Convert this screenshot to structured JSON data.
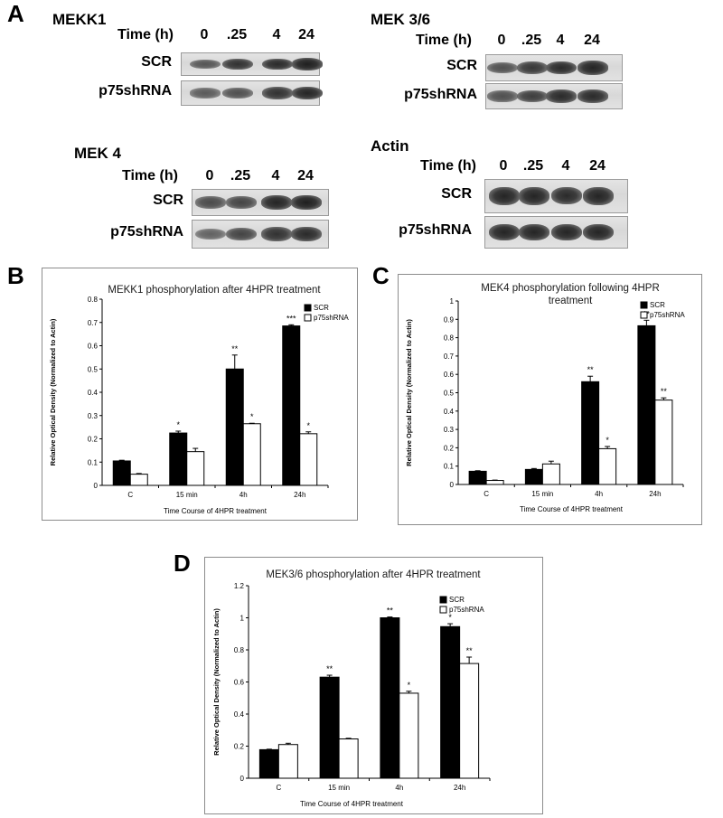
{
  "panels": {
    "a": "A",
    "b": "B",
    "c": "C",
    "d": "D"
  },
  "blots": [
    {
      "title": "MEKK1",
      "time_label": "Time (h)",
      "times": [
        "0",
        ".25",
        "4",
        "24"
      ],
      "rows": [
        "SCR",
        "p75shRNA"
      ],
      "intensity": [
        [
          0.55,
          0.85,
          0.9,
          1.0
        ],
        [
          0.5,
          0.6,
          0.85,
          0.95
        ]
      ]
    },
    {
      "title": "MEK 3/6",
      "time_label": "Time (h)",
      "times": [
        "0",
        ".25",
        "4",
        "24"
      ],
      "rows": [
        "SCR",
        "p75shRNA"
      ],
      "intensity": [
        [
          0.6,
          0.8,
          0.9,
          0.95
        ],
        [
          0.6,
          0.75,
          0.9,
          0.9
        ]
      ]
    },
    {
      "title": "MEK 4",
      "time_label": "Time (h)",
      "times": [
        "0",
        ".25",
        "4",
        "24"
      ],
      "rows": [
        "SCR",
        "p75shRNA"
      ],
      "intensity": [
        [
          0.65,
          0.7,
          0.95,
          1.0
        ],
        [
          0.45,
          0.7,
          0.85,
          0.9
        ]
      ]
    },
    {
      "title": "Actin",
      "time_label": "Time (h)",
      "times": [
        "0",
        ".25",
        "4",
        "24"
      ],
      "rows": [
        "SCR",
        "p75shRNA"
      ],
      "intensity": [
        [
          0.95,
          0.95,
          0.9,
          0.95
        ],
        [
          0.95,
          0.95,
          0.95,
          0.95
        ]
      ]
    }
  ],
  "chart_data": [
    {
      "type": "bar",
      "panel": "B",
      "title": "MEKK1 phosphorylation after 4HPR treatment",
      "xlabel": "Time Course of 4HPR treatment",
      "ylabel": "Relative Optical Density (Normalized to Actin)",
      "categories": [
        "C",
        "15 min",
        "4h",
        "24h"
      ],
      "ylim": [
        0,
        0.8
      ],
      "yticks": [
        "0",
        "0.1",
        "0.2",
        "0.3",
        "0.4",
        "0.5",
        "0.6",
        "0.7",
        "0.8"
      ],
      "series": [
        {
          "name": "SCR",
          "color": "#000000",
          "values": [
            0.105,
            0.225,
            0.5,
            0.685
          ],
          "errors": [
            0.003,
            0.008,
            0.06,
            0.005
          ],
          "sig": [
            "",
            "*",
            "**",
            "***"
          ]
        },
        {
          "name": "p75shRNA",
          "color": "#ffffff",
          "values": [
            0.048,
            0.145,
            0.265,
            0.222
          ],
          "errors": [
            0.003,
            0.014,
            0.002,
            0.008
          ],
          "sig": [
            "",
            "",
            "*",
            "*"
          ]
        }
      ],
      "legend": "top-right"
    },
    {
      "type": "bar",
      "panel": "C",
      "title": "MEK4 phosphorylation following 4HPR treatment",
      "xlabel": "Time Course of 4HPR treatment",
      "ylabel": "Relative Optical Density (Normalized to Actin)",
      "categories": [
        "C",
        "15 min",
        "4h",
        "24h"
      ],
      "ylim": [
        0,
        1
      ],
      "yticks": [
        "0",
        "0.1",
        "0.2",
        "0.3",
        "0.4",
        "0.5",
        "0.6",
        "0.7",
        "0.8",
        "0.9",
        "1"
      ],
      "series": [
        {
          "name": "SCR",
          "color": "#000000",
          "values": [
            0.072,
            0.082,
            0.56,
            0.865
          ],
          "errors": [
            0.003,
            0.005,
            0.03,
            0.03
          ],
          "sig": [
            "",
            "",
            "**",
            "**"
          ]
        },
        {
          "name": "p75shRNA",
          "color": "#ffffff",
          "values": [
            0.022,
            0.112,
            0.195,
            0.46
          ],
          "errors": [
            0.002,
            0.015,
            0.012,
            0.012
          ],
          "sig": [
            "",
            "",
            "*",
            "**"
          ]
        }
      ],
      "legend": "top-right"
    },
    {
      "type": "bar",
      "panel": "D",
      "title": "MEK3/6 phosphorylation after 4HPR treatment",
      "xlabel": "Time Course of 4HPR treatment",
      "ylabel": "Relative Optical Density (Normalized to Actin)",
      "categories": [
        "C",
        "15 min",
        "4h",
        "24h"
      ],
      "ylim": [
        0,
        1.2
      ],
      "yticks": [
        "0",
        "0.2",
        "0.4",
        "0.6",
        "0.8",
        "1",
        "1.2"
      ],
      "series": [
        {
          "name": "SCR",
          "color": "#000000",
          "values": [
            0.178,
            0.63,
            1.0,
            0.945
          ],
          "errors": [
            0.003,
            0.012,
            0.005,
            0.018
          ],
          "sig": [
            "",
            "**",
            "**",
            "*"
          ]
        },
        {
          "name": "p75shRNA",
          "color": "#ffffff",
          "values": [
            0.21,
            0.245,
            0.53,
            0.715
          ],
          "errors": [
            0.008,
            0.004,
            0.012,
            0.04
          ],
          "sig": [
            "",
            "",
            "*",
            "**"
          ]
        }
      ],
      "legend": "top-right"
    }
  ]
}
